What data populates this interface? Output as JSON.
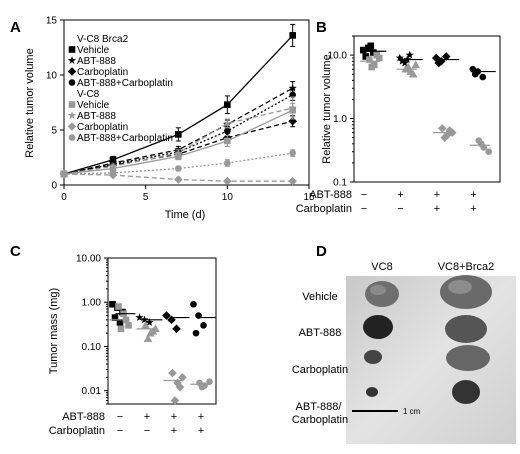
{
  "panels": {
    "A": "A",
    "B": "B",
    "C": "C",
    "D": "D"
  },
  "chart_data": [
    {
      "panel": "A",
      "type": "line",
      "xlabel": "Time (d)",
      "ylabel": "Relative tumor volume",
      "xlim": [
        0,
        15
      ],
      "ylim": [
        0,
        15
      ],
      "xticks": [
        "0",
        "5",
        "10",
        "15"
      ],
      "yticks": [
        "0",
        "5",
        "10",
        "15"
      ],
      "legend_groups": [
        {
          "title": "V-C8 Brca2",
          "entries": [
            "Vehicle",
            "ABT-888",
            "Carboplatin",
            "ABT-888+Carboplatin"
          ]
        },
        {
          "title": "V-C8",
          "entries": [
            "Vehicle",
            "ABT-888",
            "Carboplatin",
            "ABT-888+Carboplatin"
          ]
        }
      ],
      "x": [
        0,
        3,
        7,
        10,
        14
      ],
      "series": [
        {
          "name": "Vehicle",
          "group": "V-C8 Brca2",
          "color": "#000000",
          "dash": "",
          "marker": "square",
          "values": [
            1,
            2.3,
            4.6,
            7.3,
            13.6
          ],
          "err": [
            0,
            0.3,
            0.6,
            0.8,
            1.0
          ]
        },
        {
          "name": "ABT-888",
          "group": "V-C8 Brca2",
          "color": "#000000",
          "dash": "5,3",
          "marker": "star",
          "values": [
            1,
            2.0,
            3.2,
            5.5,
            8.8
          ],
          "err": [
            0,
            0.2,
            0.3,
            0.4,
            0.6
          ]
        },
        {
          "name": "Carboplatin",
          "group": "V-C8 Brca2",
          "color": "#000000",
          "dash": "5,3",
          "marker": "diamond",
          "values": [
            1,
            1.8,
            2.8,
            4.3,
            5.8
          ],
          "err": [
            0,
            0.2,
            0.3,
            0.4,
            0.5
          ]
        },
        {
          "name": "ABT-888+Carboplatin",
          "group": "V-C8 Brca2",
          "color": "#000000",
          "dash": "2,2",
          "marker": "circle",
          "values": [
            1,
            1.9,
            3.0,
            4.9,
            8.2
          ],
          "err": [
            0,
            0.2,
            0.3,
            0.4,
            0.5
          ]
        },
        {
          "name": "Vehicle",
          "group": "V-C8",
          "color": "#999999",
          "dash": "",
          "marker": "square",
          "values": [
            1,
            1.5,
            2.6,
            4.0,
            6.8
          ],
          "err": [
            0,
            0.2,
            0.3,
            0.5,
            0.6
          ]
        },
        {
          "name": "ABT-888",
          "group": "V-C8",
          "color": "#999999",
          "dash": "5,3",
          "marker": "star",
          "values": [
            1,
            1.7,
            2.9,
            5.6,
            7.0
          ],
          "err": [
            0,
            0.2,
            0.3,
            0.4,
            1.0
          ]
        },
        {
          "name": "Carboplatin",
          "group": "V-C8",
          "color": "#999999",
          "dash": "5,3",
          "marker": "diamond",
          "values": [
            1,
            0.9,
            0.5,
            0.35,
            0.35
          ],
          "err": [
            0,
            0.1,
            0.1,
            0.1,
            0.1
          ]
        },
        {
          "name": "ABT-888+Carboplatin",
          "group": "V-C8",
          "color": "#999999",
          "dash": "2,2",
          "marker": "circle",
          "values": [
            1,
            1.1,
            1.5,
            2.0,
            2.9
          ],
          "err": [
            0,
            0.1,
            0.2,
            0.3,
            0.3
          ]
        }
      ]
    },
    {
      "panel": "B",
      "type": "scatter",
      "scale": "log",
      "ylabel": "Relative tumor volume",
      "ylim": [
        0.1,
        20
      ],
      "yticks": [
        "0.1",
        "1.0",
        "10.0"
      ],
      "row_labels": [
        "ABT-888",
        "Carboplatin"
      ],
      "conditions": [
        {
          "abt": "−",
          "carbo": "−",
          "black": [
            12,
            13,
            11,
            9.5,
            14
          ],
          "gray": [
            8.5,
            7,
            9,
            6.5,
            10
          ],
          "black_mean": 11.5,
          "gray_mean": 8
        },
        {
          "abt": "+",
          "carbo": "−",
          "black": [
            9,
            7.5,
            10,
            8,
            8.5
          ],
          "gray": [
            6,
            5.5,
            7,
            6.5,
            5
          ],
          "black_mean": 8.5,
          "gray_mean": 6
        },
        {
          "abt": "+",
          "carbo": "+",
          "black": [
            9,
            8,
            9.5,
            7.5
          ],
          "gray": [
            0.7,
            0.55,
            0.6,
            0.5,
            0.65
          ],
          "black_mean": 8.5,
          "gray_mean": 0.6
        },
        {
          "abt": "+",
          "carbo": "+",
          "black": [
            6,
            5.5,
            4.5,
            5
          ],
          "gray": [
            0.45,
            0.35,
            0.3,
            0.4
          ],
          "black_mean": 5.5,
          "gray_mean": 0.38
        }
      ]
    },
    {
      "panel": "C",
      "type": "scatter",
      "scale": "log",
      "ylabel": "Tumor mass (mg)",
      "ylim": [
        0.005,
        10
      ],
      "yticks": [
        "0.01",
        "0.10",
        "1.00",
        "10.00"
      ],
      "row_labels": [
        "ABT-888",
        "Carboplatin"
      ],
      "conditions": [
        {
          "abt": "−",
          "carbo": "−",
          "black": [
            0.9,
            0.75,
            0.6,
            0.45,
            0.35
          ],
          "gray": [
            0.8,
            0.55,
            0.3,
            0.25,
            0.4
          ],
          "black_mean": 0.55,
          "gray_mean": 0.4
        },
        {
          "abt": "+",
          "carbo": "−",
          "black": [
            0.45,
            0.4,
            0.35
          ],
          "gray": [
            0.3,
            0.2,
            0.25,
            0.15,
            0.22
          ],
          "black_mean": 0.4,
          "gray_mean": 0.25
        },
        {
          "abt": "+",
          "carbo": "+",
          "black": [
            0.5,
            0.4,
            0.25
          ],
          "gray": [
            0.025,
            0.015,
            0.02,
            0.006,
            0.012
          ],
          "black_mean": 0.45,
          "gray_mean": 0.017
        },
        {
          "abt": "+",
          "carbo": "+",
          "black": [
            0.9,
            0.5,
            0.3,
            0.2
          ],
          "gray": [
            0.015,
            0.013,
            0.016,
            0.012
          ],
          "black_mean": 0.45,
          "gray_mean": 0.014
        }
      ]
    }
  ],
  "photo": {
    "column_labels": [
      "VC8",
      "VC8+Brca2"
    ],
    "row_labels": [
      "Vehicle",
      "ABT-888",
      "Carboplatin",
      "ABT-888/\nCarboplatin"
    ],
    "scale_bar": "1 cm"
  }
}
